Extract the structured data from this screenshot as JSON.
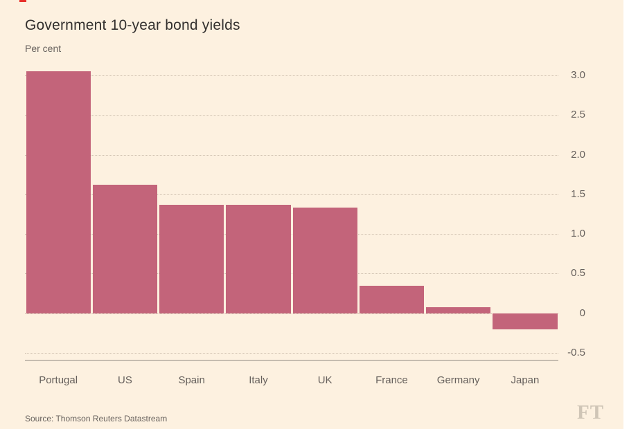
{
  "chart_data": {
    "type": "bar",
    "title": "Government 10-year bond yields",
    "subtitle": "Per cent",
    "categories": [
      "Portugal",
      "US",
      "Spain",
      "Italy",
      "UK",
      "France",
      "Germany",
      "Japan"
    ],
    "values": [
      3.05,
      1.62,
      1.37,
      1.37,
      1.33,
      0.35,
      0.08,
      -0.2
    ],
    "ylim": [
      -0.5,
      3.0
    ],
    "yticks": [
      3.0,
      2.5,
      2.0,
      1.5,
      1.0,
      0.5,
      0,
      -0.5
    ],
    "ytick_labels": [
      "3.0",
      "2.5",
      "2.0",
      "1.5",
      "1.0",
      "0.5",
      "0",
      "-0.5"
    ],
    "xlabel": "",
    "ylabel": "Per cent",
    "grid": "horizontal-dotted",
    "legend": "none",
    "bar_color": "#c3647a"
  },
  "footer": {
    "source": "Source: Thomson Reuters Datastream",
    "logo": "FT"
  },
  "colors": {
    "background": "#fdf1e0",
    "bar": "#c3647a",
    "text_dark": "#33302e",
    "text_muted": "#66605c",
    "gridline": "#cdbfae",
    "logo": "#cfc5b6",
    "accent_red": "#e8302a"
  }
}
